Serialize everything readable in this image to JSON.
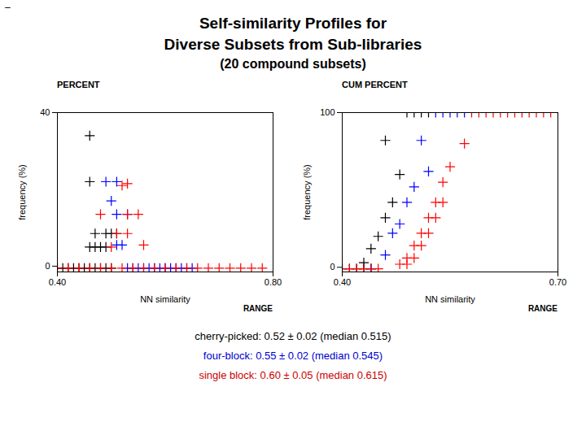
{
  "title": [
    "Self-similarity Profiles for",
    "Diverse Subsets from Sub-libraries"
  ],
  "subtitle": "(20 compound subsets)",
  "annotations": [
    {
      "text": "–"
    },
    {
      "text": "cherry-picked:  0.52 ± 0.02 (median 0.515)",
      "color": "#000000"
    },
    {
      "text": "four-block:  0.55 ± 0.02 (median 0.545)",
      "color": "#0000CC"
    },
    {
      "text": "single block:  0.60 ± 0.05 (median 0.615)",
      "color": "#CC0000"
    }
  ],
  "chart_data": [
    {
      "type": "scatter",
      "title": "PERCENT",
      "xlabel": "NN similarity",
      "ylabel": "frequency (%)",
      "xlim": [
        0.4,
        0.8
      ],
      "ylim": [
        -1.5,
        40
      ],
      "xticks": [
        0.4,
        0.8
      ],
      "yticks": [
        0,
        40
      ],
      "grid": false,
      "marker": "plus",
      "annotations": [
        {
          "text": "RANGE"
        }
      ],
      "series": [
        {
          "color": "black",
          "x": [
            0.46,
            0.46,
            0.47,
            0.49,
            0.5,
            0.51,
            0.46,
            0.47,
            0.48,
            0.49,
            0.4,
            0.41,
            0.42,
            0.43,
            0.44,
            0.45,
            0.46,
            0.47,
            0.48,
            0.49,
            0.5
          ],
          "y": [
            34,
            22,
            8.5,
            8.5,
            8.5,
            8.5,
            5,
            5,
            5,
            5,
            -0.5,
            -0.5,
            -0.5,
            -0.5,
            -0.5,
            -0.5,
            -0.5,
            -0.5,
            -0.5,
            -0.5,
            -0.5
          ]
        },
        {
          "color": "blue",
          "x": [
            0.49,
            0.51,
            0.5,
            0.51,
            0.53,
            0.51,
            0.52,
            0.53,
            0.54,
            0.55,
            0.56,
            0.57,
            0.58,
            0.59,
            0.6,
            0.61,
            0.62,
            0.63,
            0.64,
            0.65
          ],
          "y": [
            22,
            22,
            17,
            13.5,
            13.5,
            5.5,
            5.5,
            -0.5,
            -0.5,
            -0.5,
            -0.5,
            -0.5,
            -0.5,
            -0.5,
            -0.5,
            -0.5,
            -0.5,
            -0.5,
            -0.5,
            -0.5
          ]
        },
        {
          "color": "red",
          "x": [
            0.48,
            0.52,
            0.53,
            0.53,
            0.55,
            0.56,
            0.51,
            0.53,
            0.5,
            0.4,
            0.42,
            0.44,
            0.46,
            0.48,
            0.5,
            0.52,
            0.54,
            0.56,
            0.58,
            0.6,
            0.62,
            0.64,
            0.66,
            0.68,
            0.7,
            0.72,
            0.74,
            0.76,
            0.78
          ],
          "y": [
            13.5,
            21,
            21.5,
            13.5,
            13.5,
            5.5,
            8.5,
            8.5,
            5,
            -0.5,
            -0.5,
            -0.5,
            -0.5,
            -0.5,
            -0.5,
            -0.5,
            -0.5,
            -0.5,
            -0.5,
            -0.5,
            -0.5,
            -0.5,
            -0.5,
            -0.5,
            -0.5,
            -0.5,
            -0.5,
            -0.5,
            -0.5
          ]
        }
      ]
    },
    {
      "type": "scatter",
      "title": "CUM PERCENT",
      "xlabel": "NN similarity",
      "ylabel": "frequency (%)",
      "xlim": [
        0.4,
        0.7
      ],
      "ylim": [
        -3,
        100
      ],
      "xticks": [
        0.4,
        0.7
      ],
      "yticks": [
        0,
        100
      ],
      "grid": false,
      "marker": "plus",
      "annotations": [
        {
          "text": "RANGE"
        }
      ],
      "series": [
        {
          "color": "black",
          "x": [
            0.49,
            0.5,
            0.51,
            0.52,
            0.46,
            0.48,
            0.47,
            0.46,
            0.45,
            0.44,
            0.43,
            0.4,
            0.41,
            0.42,
            0.43,
            0.44
          ],
          "y": [
            100,
            100,
            100,
            100,
            82,
            60,
            42,
            32,
            20,
            12,
            3,
            -1,
            -1,
            -1,
            -1,
            -1
          ]
        },
        {
          "color": "blue",
          "x": [
            0.53,
            0.54,
            0.55,
            0.56,
            0.57,
            0.51,
            0.52,
            0.5,
            0.49,
            0.48,
            0.47,
            0.46,
            0.44
          ],
          "y": [
            100,
            100,
            100,
            100,
            100,
            82,
            62,
            52,
            42,
            28,
            22,
            8,
            -1
          ]
        },
        {
          "color": "red",
          "x": [
            0.58,
            0.59,
            0.6,
            0.61,
            0.62,
            0.63,
            0.64,
            0.65,
            0.66,
            0.67,
            0.68,
            0.69,
            0.7,
            0.57,
            0.55,
            0.54,
            0.53,
            0.54,
            0.52,
            0.53,
            0.51,
            0.52,
            0.5,
            0.51,
            0.49,
            0.5,
            0.48,
            0.49,
            0.4,
            0.41,
            0.42,
            0.43,
            0.44,
            0.45
          ],
          "y": [
            100,
            100,
            100,
            100,
            100,
            100,
            100,
            100,
            100,
            100,
            100,
            100,
            100,
            80,
            65,
            55,
            42,
            42,
            32,
            32,
            22,
            22,
            14,
            14,
            6,
            6,
            2,
            2,
            -1,
            -1,
            -1,
            -1,
            -1,
            -1
          ]
        }
      ]
    }
  ]
}
